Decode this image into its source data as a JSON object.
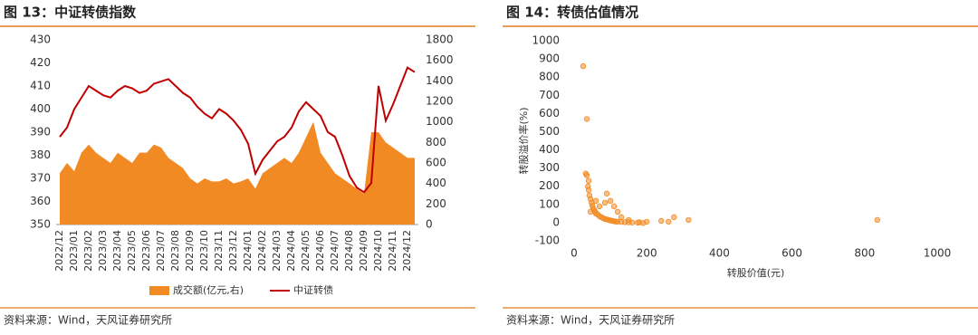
{
  "chart_data": [
    {
      "type": "combo",
      "title": "图 13：中证转债指数",
      "source": "资料来源：Wind，天风证券研究所",
      "categories": [
        "2022/12",
        null,
        "2023/01",
        null,
        "2023/02",
        null,
        "2023/03",
        null,
        "2023/04",
        null,
        "2023/05",
        null,
        "2023/06",
        null,
        "2023/07",
        null,
        "2023/08",
        null,
        "2023/09",
        null,
        "2023/10",
        null,
        "2023/11",
        null,
        "2023/12",
        null,
        "2024/01",
        null,
        "2024/02",
        null,
        "2024/03",
        null,
        "2024/04",
        null,
        "2024/05",
        null,
        "2024/06",
        null,
        "2024/07",
        null,
        "2024/08",
        null,
        "2024/09",
        null,
        "2024/10",
        null,
        "2024/11",
        null,
        "2024/12",
        null
      ],
      "series": [
        {
          "name": "成交额(亿元,右)",
          "type": "area",
          "axis": "y2",
          "color": "#f28a24",
          "values": [
            500,
            600,
            520,
            700,
            780,
            700,
            650,
            600,
            700,
            650,
            600,
            700,
            700,
            780,
            750,
            650,
            600,
            550,
            450,
            400,
            450,
            420,
            420,
            450,
            400,
            420,
            450,
            350,
            500,
            550,
            600,
            650,
            600,
            700,
            850,
            1000,
            700,
            600,
            500,
            450,
            400,
            350,
            300,
            900,
            900,
            800,
            750,
            700,
            650,
            650
          ]
        },
        {
          "name": "中证转债",
          "type": "line",
          "color": "#c00000",
          "values": [
            388,
            392,
            400,
            405,
            410,
            408,
            406,
            405,
            408,
            410,
            409,
            407,
            408,
            411,
            412,
            413,
            410,
            407,
            405,
            401,
            398,
            396,
            400,
            398,
            395,
            391,
            385,
            372,
            378,
            382,
            386,
            388,
            392,
            399,
            403,
            400,
            397,
            390,
            388,
            380,
            371,
            366,
            364,
            368,
            410,
            395,
            402,
            410,
            418,
            416
          ]
        }
      ],
      "ylim": [
        350,
        430
      ],
      "yticks": [
        350,
        360,
        370,
        380,
        390,
        400,
        410,
        420,
        430
      ],
      "y2lim": [
        0,
        1800
      ],
      "y2ticks": [
        0,
        200,
        400,
        600,
        800,
        1000,
        1200,
        1400,
        1600,
        1800
      ],
      "legend": "bottom",
      "grid": false
    },
    {
      "type": "scatter",
      "title": "图 14：转债估值情况",
      "source": "资料来源：Wind，天风证券研究所",
      "x_label": "转股价值(元)",
      "y_label": "转股溢价率(%)",
      "color": "#f28a24",
      "x": [
        25,
        35,
        32,
        35,
        38,
        40,
        42,
        45,
        48,
        50,
        52,
        55,
        58,
        60,
        65,
        70,
        75,
        80,
        85,
        90,
        95,
        100,
        105,
        110,
        115,
        120,
        130,
        140,
        150,
        160,
        175,
        190,
        90,
        100,
        110,
        85,
        120,
        130,
        60,
        70,
        40,
        45,
        200,
        240,
        260,
        275,
        315,
        835,
        180,
        150
      ],
      "values": [
        860,
        570,
        270,
        260,
        200,
        180,
        150,
        130,
        110,
        95,
        80,
        70,
        60,
        50,
        45,
        35,
        30,
        25,
        20,
        18,
        15,
        12,
        10,
        8,
        6,
        5,
        4,
        3,
        2,
        1,
        0,
        -2,
        160,
        120,
        90,
        110,
        60,
        30,
        120,
        90,
        230,
        60,
        5,
        10,
        5,
        30,
        15,
        15,
        2,
        15
      ],
      "xlim": [
        0,
        1000
      ],
      "xticks": [
        0,
        200,
        400,
        600,
        800,
        1000
      ],
      "ylim": [
        -100,
        1000
      ],
      "yticks": [
        -100,
        0,
        100,
        200,
        300,
        400,
        500,
        600,
        700,
        800,
        900,
        1000
      ],
      "grid": false
    }
  ]
}
